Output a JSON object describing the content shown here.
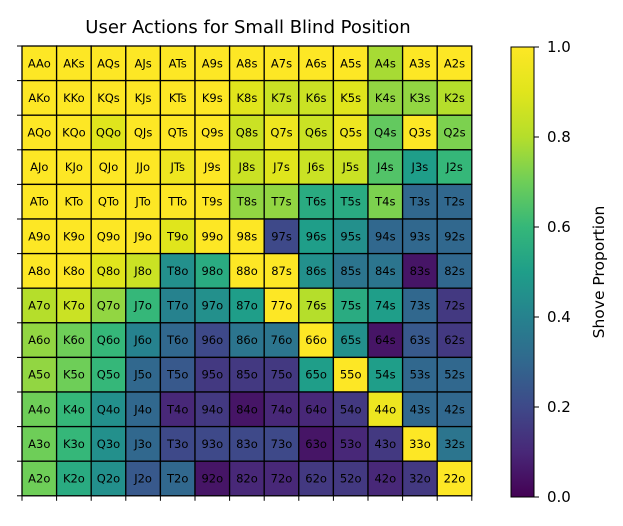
{
  "chart_data": {
    "type": "heatmap",
    "title": "User Actions for Small Blind Position",
    "rows": [
      [
        {
          "label": "AAo",
          "value": 1.0
        },
        {
          "label": "AKs",
          "value": 1.0
        },
        {
          "label": "AQs",
          "value": 1.0
        },
        {
          "label": "AJs",
          "value": 1.0
        },
        {
          "label": "ATs",
          "value": 1.0
        },
        {
          "label": "A9s",
          "value": 1.0
        },
        {
          "label": "A8s",
          "value": 1.0
        },
        {
          "label": "A7s",
          "value": 1.0
        },
        {
          "label": "A6s",
          "value": 1.0
        },
        {
          "label": "A5s",
          "value": 1.0
        },
        {
          "label": "A4s",
          "value": 0.78
        },
        {
          "label": "A3s",
          "value": 1.0
        },
        {
          "label": "A2s",
          "value": 1.0
        }
      ],
      [
        {
          "label": "AKo",
          "value": 1.0
        },
        {
          "label": "KKo",
          "value": 1.0
        },
        {
          "label": "KQs",
          "value": 1.0
        },
        {
          "label": "KJs",
          "value": 1.0
        },
        {
          "label": "KTs",
          "value": 1.0
        },
        {
          "label": "K9s",
          "value": 1.0
        },
        {
          "label": "K8s",
          "value": 0.9
        },
        {
          "label": "K7s",
          "value": 0.85
        },
        {
          "label": "K6s",
          "value": 0.85
        },
        {
          "label": "K5s",
          "value": 0.9
        },
        {
          "label": "K4s",
          "value": 0.75
        },
        {
          "label": "K3s",
          "value": 0.75
        },
        {
          "label": "K2s",
          "value": 0.8
        }
      ],
      [
        {
          "label": "AQo",
          "value": 1.0
        },
        {
          "label": "KQo",
          "value": 1.0
        },
        {
          "label": "QQo",
          "value": 0.9
        },
        {
          "label": "QJs",
          "value": 1.0
        },
        {
          "label": "QTs",
          "value": 1.0
        },
        {
          "label": "Q9s",
          "value": 1.0
        },
        {
          "label": "Q8s",
          "value": 0.85
        },
        {
          "label": "Q7s",
          "value": 0.95
        },
        {
          "label": "Q6s",
          "value": 0.85
        },
        {
          "label": "Q5s",
          "value": 0.95
        },
        {
          "label": "Q4s",
          "value": 0.68
        },
        {
          "label": "Q3s",
          "value": 1.0
        },
        {
          "label": "Q2s",
          "value": 0.72
        }
      ],
      [
        {
          "label": "AJo",
          "value": 1.0
        },
        {
          "label": "KJo",
          "value": 1.0
        },
        {
          "label": "QJo",
          "value": 1.0
        },
        {
          "label": "JJo",
          "value": 1.0
        },
        {
          "label": "JTs",
          "value": 0.95
        },
        {
          "label": "J9s",
          "value": 1.0
        },
        {
          "label": "J8s",
          "value": 0.85
        },
        {
          "label": "J7s",
          "value": 0.9
        },
        {
          "label": "J6s",
          "value": 0.85
        },
        {
          "label": "J5s",
          "value": 0.85
        },
        {
          "label": "J4s",
          "value": 0.65
        },
        {
          "label": "J3s",
          "value": 0.5
        },
        {
          "label": "J2s",
          "value": 0.6
        }
      ],
      [
        {
          "label": "ATo",
          "value": 1.0
        },
        {
          "label": "KTo",
          "value": 1.0
        },
        {
          "label": "QTo",
          "value": 1.0
        },
        {
          "label": "JTo",
          "value": 1.0
        },
        {
          "label": "TTo",
          "value": 1.0
        },
        {
          "label": "T9s",
          "value": 1.0
        },
        {
          "label": "T8s",
          "value": 0.75
        },
        {
          "label": "T7s",
          "value": 0.75
        },
        {
          "label": "T6s",
          "value": 0.55
        },
        {
          "label": "T5s",
          "value": 0.55
        },
        {
          "label": "T4s",
          "value": 0.72
        },
        {
          "label": "T3s",
          "value": 0.3
        },
        {
          "label": "T2s",
          "value": 0.3
        }
      ],
      [
        {
          "label": "A9o",
          "value": 1.0
        },
        {
          "label": "K9o",
          "value": 1.0
        },
        {
          "label": "Q9o",
          "value": 1.0
        },
        {
          "label": "J9o",
          "value": 1.0
        },
        {
          "label": "T9o",
          "value": 0.9
        },
        {
          "label": "99o",
          "value": 1.0
        },
        {
          "label": "98s",
          "value": 1.0
        },
        {
          "label": "97s",
          "value": 0.2
        },
        {
          "label": "96s",
          "value": 0.5
        },
        {
          "label": "95s",
          "value": 0.45
        },
        {
          "label": "94s",
          "value": 0.3
        },
        {
          "label": "93s",
          "value": 0.3
        },
        {
          "label": "92s",
          "value": 0.3
        }
      ],
      [
        {
          "label": "A8o",
          "value": 1.0
        },
        {
          "label": "K8o",
          "value": 1.0
        },
        {
          "label": "Q8o",
          "value": 0.9
        },
        {
          "label": "J8o",
          "value": 0.85
        },
        {
          "label": "T8o",
          "value": 0.45
        },
        {
          "label": "98o",
          "value": 0.55
        },
        {
          "label": "88o",
          "value": 1.0
        },
        {
          "label": "87s",
          "value": 1.0
        },
        {
          "label": "86s",
          "value": 0.45
        },
        {
          "label": "85s",
          "value": 0.35
        },
        {
          "label": "84s",
          "value": 0.35
        },
        {
          "label": "83s",
          "value": 0.05
        },
        {
          "label": "82s",
          "value": 0.3
        }
      ],
      [
        {
          "label": "A7o",
          "value": 0.8
        },
        {
          "label": "K7o",
          "value": 0.85
        },
        {
          "label": "Q7o",
          "value": 0.75
        },
        {
          "label": "J7o",
          "value": 0.6
        },
        {
          "label": "T7o",
          "value": 0.4
        },
        {
          "label": "97o",
          "value": 0.45
        },
        {
          "label": "87o",
          "value": 0.5
        },
        {
          "label": "77o",
          "value": 1.0
        },
        {
          "label": "76s",
          "value": 0.8
        },
        {
          "label": "75s",
          "value": 0.55
        },
        {
          "label": "74s",
          "value": 0.5
        },
        {
          "label": "73s",
          "value": 0.3
        },
        {
          "label": "72s",
          "value": 0.15
        }
      ],
      [
        {
          "label": "A6o",
          "value": 0.75
        },
        {
          "label": "K6o",
          "value": 0.7
        },
        {
          "label": "Q6o",
          "value": 0.6
        },
        {
          "label": "J6o",
          "value": 0.4
        },
        {
          "label": "T6o",
          "value": 0.3
        },
        {
          "label": "96o",
          "value": 0.2
        },
        {
          "label": "86o",
          "value": 0.35
        },
        {
          "label": "76o",
          "value": 0.35
        },
        {
          "label": "66o",
          "value": 1.0
        },
        {
          "label": "65s",
          "value": 0.45
        },
        {
          "label": "64s",
          "value": 0.05
        },
        {
          "label": "63s",
          "value": 0.25
        },
        {
          "label": "62s",
          "value": 0.15
        }
      ],
      [
        {
          "label": "A5o",
          "value": 0.75
        },
        {
          "label": "K5o",
          "value": 0.7
        },
        {
          "label": "Q5o",
          "value": 0.6
        },
        {
          "label": "J5o",
          "value": 0.3
        },
        {
          "label": "T5o",
          "value": 0.25
        },
        {
          "label": "95o",
          "value": 0.15
        },
        {
          "label": "85o",
          "value": 0.15
        },
        {
          "label": "75o",
          "value": 0.15
        },
        {
          "label": "65o",
          "value": 0.5
        },
        {
          "label": "55o",
          "value": 1.0
        },
        {
          "label": "54s",
          "value": 0.5
        },
        {
          "label": "53s",
          "value": 0.3
        },
        {
          "label": "52s",
          "value": 0.3
        }
      ],
      [
        {
          "label": "A4o",
          "value": 0.7
        },
        {
          "label": "K4o",
          "value": 0.6
        },
        {
          "label": "Q4o",
          "value": 0.45
        },
        {
          "label": "J4o",
          "value": 0.3
        },
        {
          "label": "T4o",
          "value": 0.1
        },
        {
          "label": "94o",
          "value": 0.15
        },
        {
          "label": "84o",
          "value": 0.05
        },
        {
          "label": "74o",
          "value": 0.1
        },
        {
          "label": "64o",
          "value": 0.1
        },
        {
          "label": "54o",
          "value": 0.15
        },
        {
          "label": "44o",
          "value": 0.95
        },
        {
          "label": "43s",
          "value": 0.3
        },
        {
          "label": "42s",
          "value": 0.3
        }
      ],
      [
        {
          "label": "A3o",
          "value": 0.7
        },
        {
          "label": "K3o",
          "value": 0.6
        },
        {
          "label": "Q3o",
          "value": 0.45
        },
        {
          "label": "J3o",
          "value": 0.3
        },
        {
          "label": "T3o",
          "value": 0.2
        },
        {
          "label": "93o",
          "value": 0.2
        },
        {
          "label": "83o",
          "value": 0.2
        },
        {
          "label": "73o",
          "value": 0.2
        },
        {
          "label": "63o",
          "value": 0.05
        },
        {
          "label": "53o",
          "value": 0.1
        },
        {
          "label": "43o",
          "value": 0.15
        },
        {
          "label": "33o",
          "value": 1.0
        },
        {
          "label": "32s",
          "value": 0.35
        }
      ],
      [
        {
          "label": "A2o",
          "value": 0.7
        },
        {
          "label": "K2o",
          "value": 0.55
        },
        {
          "label": "Q2o",
          "value": 0.45
        },
        {
          "label": "J2o",
          "value": 0.25
        },
        {
          "label": "T2o",
          "value": 0.3
        },
        {
          "label": "92o",
          "value": 0.05
        },
        {
          "label": "82o",
          "value": 0.1
        },
        {
          "label": "72o",
          "value": 0.1
        },
        {
          "label": "62o",
          "value": 0.15
        },
        {
          "label": "52o",
          "value": 0.15
        },
        {
          "label": "42o",
          "value": 0.1
        },
        {
          "label": "32o",
          "value": 0.15
        },
        {
          "label": "22o",
          "value": 1.0
        }
      ]
    ],
    "colorbar": {
      "label": "Shove Proportion",
      "ticks": [
        "0.0",
        "0.2",
        "0.4",
        "0.6",
        "0.8",
        "1.0"
      ],
      "range": [
        0,
        1
      ],
      "colormap": "viridis"
    }
  }
}
